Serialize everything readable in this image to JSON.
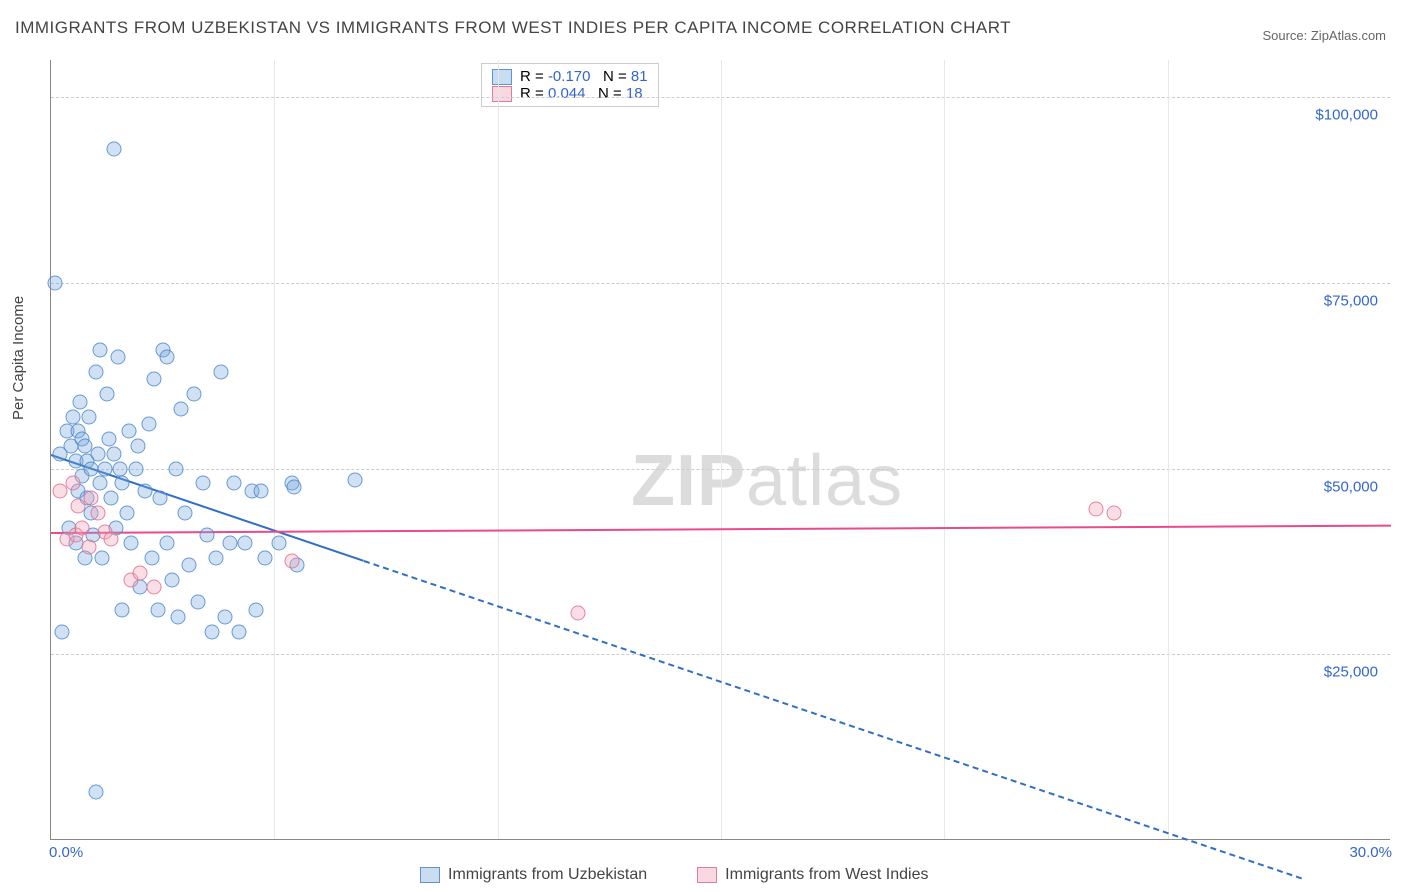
{
  "title": "IMMIGRANTS FROM UZBEKISTAN VS IMMIGRANTS FROM WEST INDIES PER CAPITA INCOME CORRELATION CHART",
  "source": "Source: ZipAtlas.com",
  "ylabel": "Per Capita Income",
  "watermark_bold": "ZIP",
  "watermark_rest": "atlas",
  "chart": {
    "type": "scatter",
    "xlim": [
      0,
      30
    ],
    "ylim": [
      0,
      105000
    ],
    "x_axis_unit": "%",
    "y_axis_unit": "$",
    "background_color": "#ffffff",
    "grid_color": "#cccccc",
    "axis_color": "#888888",
    "ytick_values": [
      25000,
      50000,
      75000,
      100000
    ],
    "ytick_labels": [
      "$25,000",
      "$50,000",
      "$75,000",
      "$100,000"
    ],
    "xtick_labels": {
      "left": "0.0%",
      "right": "30.0%"
    },
    "vgrid_positions": [
      5,
      10,
      15,
      20,
      25
    ],
    "series": [
      {
        "name": "Immigrants from Uzbekistan",
        "color_fill": "rgba(120,170,220,0.35)",
        "color_stroke": "rgba(70,130,200,0.75)",
        "marker_class": "blue",
        "R": "-0.170",
        "N": "81",
        "regression": {
          "x1": 0,
          "y1": 52000,
          "x2": 28,
          "y2": -5000,
          "solid_until_x": 7,
          "color": "#2f6fc4"
        },
        "points": [
          [
            0.1,
            75000
          ],
          [
            1.4,
            93000
          ],
          [
            0.2,
            52000
          ],
          [
            0.35,
            55000
          ],
          [
            0.45,
            53000
          ],
          [
            0.5,
            57000
          ],
          [
            0.55,
            51000
          ],
          [
            0.6,
            47000
          ],
          [
            0.6,
            55000
          ],
          [
            0.65,
            59000
          ],
          [
            0.7,
            49000
          ],
          [
            0.7,
            54000
          ],
          [
            0.75,
            53000
          ],
          [
            0.8,
            51000
          ],
          [
            0.8,
            46000
          ],
          [
            0.85,
            57000
          ],
          [
            0.9,
            50000
          ],
          [
            0.9,
            44000
          ],
          [
            1.0,
            63000
          ],
          [
            1.05,
            52000
          ],
          [
            1.1,
            48000
          ],
          [
            1.1,
            66000
          ],
          [
            1.2,
            50000
          ],
          [
            1.25,
            60000
          ],
          [
            1.3,
            54000
          ],
          [
            1.35,
            46000
          ],
          [
            1.4,
            52000
          ],
          [
            1.5,
            65000
          ],
          [
            1.55,
            50000
          ],
          [
            1.6,
            48000
          ],
          [
            1.7,
            44000
          ],
          [
            1.75,
            55000
          ],
          [
            1.8,
            40000
          ],
          [
            1.9,
            50000
          ],
          [
            1.95,
            53000
          ],
          [
            2.0,
            34000
          ],
          [
            2.1,
            47000
          ],
          [
            2.2,
            56000
          ],
          [
            2.25,
            38000
          ],
          [
            2.3,
            62000
          ],
          [
            2.4,
            31000
          ],
          [
            2.45,
            46000
          ],
          [
            2.5,
            66000
          ],
          [
            2.6,
            65000
          ],
          [
            2.6,
            40000
          ],
          [
            2.7,
            35000
          ],
          [
            2.8,
            50000
          ],
          [
            2.85,
            30000
          ],
          [
            2.9,
            58000
          ],
          [
            3.0,
            44000
          ],
          [
            3.1,
            37000
          ],
          [
            3.2,
            60000
          ],
          [
            3.3,
            32000
          ],
          [
            3.4,
            48000
          ],
          [
            3.5,
            41000
          ],
          [
            3.6,
            28000
          ],
          [
            3.7,
            38000
          ],
          [
            3.8,
            63000
          ],
          [
            3.9,
            30000
          ],
          [
            4.0,
            40000
          ],
          [
            4.1,
            48000
          ],
          [
            4.2,
            28000
          ],
          [
            4.35,
            40000
          ],
          [
            4.5,
            47000
          ],
          [
            4.6,
            31000
          ],
          [
            4.7,
            47000
          ],
          [
            4.8,
            38000
          ],
          [
            5.1,
            40000
          ],
          [
            5.4,
            48000
          ],
          [
            5.45,
            47500
          ],
          [
            5.5,
            37000
          ],
          [
            6.8,
            48500
          ],
          [
            1.0,
            6500
          ],
          [
            0.25,
            28000
          ],
          [
            1.6,
            31000
          ],
          [
            0.4,
            42000
          ],
          [
            0.55,
            40000
          ],
          [
            0.75,
            38000
          ],
          [
            0.95,
            41000
          ],
          [
            1.15,
            38000
          ],
          [
            1.45,
            42000
          ]
        ]
      },
      {
        "name": "Immigrants from West Indies",
        "color_fill": "rgba(240,160,180,0.35)",
        "color_stroke": "rgba(220,100,140,0.75)",
        "marker_class": "pink",
        "R": "0.044",
        "N": "18",
        "regression": {
          "x1": 0,
          "y1": 41500,
          "x2": 30,
          "y2": 42500,
          "solid_until_x": 30,
          "color": "#e84a8a"
        },
        "points": [
          [
            0.2,
            47000
          ],
          [
            0.35,
            40500
          ],
          [
            0.5,
            48000
          ],
          [
            0.55,
            41000
          ],
          [
            0.6,
            45000
          ],
          [
            0.7,
            42000
          ],
          [
            0.85,
            39500
          ],
          [
            0.9,
            46000
          ],
          [
            1.05,
            44000
          ],
          [
            1.2,
            41500
          ],
          [
            1.35,
            40500
          ],
          [
            1.8,
            35000
          ],
          [
            2.0,
            36000
          ],
          [
            2.3,
            34000
          ],
          [
            5.4,
            37500
          ],
          [
            11.8,
            30500
          ],
          [
            23.4,
            44500
          ],
          [
            23.8,
            44000
          ]
        ]
      }
    ]
  },
  "legend_bottom": [
    {
      "swatch": "blue",
      "label": "Immigrants from Uzbekistan"
    },
    {
      "swatch": "pink",
      "label": "Immigrants from West Indies"
    }
  ]
}
